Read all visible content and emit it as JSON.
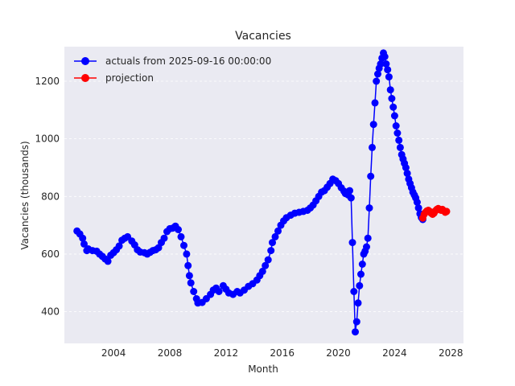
{
  "chart_data": {
    "type": "line",
    "title": "Vacancies",
    "xlabel": "Month",
    "ylabel": "Vacancies (thousands)",
    "xlim": [
      2000.5,
      2028.9
    ],
    "ylim": [
      290,
      1320
    ],
    "x_ticks": [
      2004,
      2008,
      2012,
      2016,
      2020,
      2024,
      2028
    ],
    "y_ticks": [
      400,
      600,
      800,
      1000,
      1200
    ],
    "grid": true,
    "legend": "top-left",
    "background_color": "#eaeaf2",
    "series": [
      {
        "name": "actuals from 2025-09-16 00:00:00",
        "color": "#0000ff",
        "marker": "circle",
        "points": [
          [
            2001.4,
            680
          ],
          [
            2001.6,
            670
          ],
          [
            2001.8,
            655
          ],
          [
            2001.9,
            635
          ],
          [
            2002.1,
            612
          ],
          [
            2002.2,
            618
          ],
          [
            2002.5,
            612
          ],
          [
            2002.8,
            610
          ],
          [
            2003.0,
            600
          ],
          [
            2003.2,
            592
          ],
          [
            2003.4,
            583
          ],
          [
            2003.6,
            575
          ],
          [
            2003.8,
            596
          ],
          [
            2004.0,
            605
          ],
          [
            2004.2,
            615
          ],
          [
            2004.4,
            628
          ],
          [
            2004.6,
            648
          ],
          [
            2004.8,
            655
          ],
          [
            2005.0,
            660
          ],
          [
            2005.3,
            645
          ],
          [
            2005.5,
            632
          ],
          [
            2005.7,
            615
          ],
          [
            2005.9,
            607
          ],
          [
            2006.2,
            605
          ],
          [
            2006.4,
            600
          ],
          [
            2006.6,
            606
          ],
          [
            2006.8,
            612
          ],
          [
            2007.0,
            615
          ],
          [
            2007.2,
            622
          ],
          [
            2007.4,
            640
          ],
          [
            2007.6,
            655
          ],
          [
            2007.8,
            678
          ],
          [
            2008.0,
            688
          ],
          [
            2008.2,
            690
          ],
          [
            2008.4,
            697
          ],
          [
            2008.6,
            685
          ],
          [
            2008.8,
            660
          ],
          [
            2009.0,
            630
          ],
          [
            2009.2,
            600
          ],
          [
            2009.3,
            560
          ],
          [
            2009.4,
            525
          ],
          [
            2009.5,
            500
          ],
          [
            2009.7,
            470
          ],
          [
            2009.9,
            445
          ],
          [
            2010.0,
            430
          ],
          [
            2010.3,
            432
          ],
          [
            2010.6,
            445
          ],
          [
            2010.9,
            460
          ],
          [
            2011.1,
            475
          ],
          [
            2011.3,
            482
          ],
          [
            2011.5,
            470
          ],
          [
            2011.8,
            490
          ],
          [
            2012.0,
            478
          ],
          [
            2012.2,
            465
          ],
          [
            2012.5,
            460
          ],
          [
            2012.8,
            470
          ],
          [
            2013.0,
            465
          ],
          [
            2013.3,
            475
          ],
          [
            2013.6,
            488
          ],
          [
            2013.9,
            497
          ],
          [
            2014.2,
            510
          ],
          [
            2014.4,
            525
          ],
          [
            2014.6,
            540
          ],
          [
            2014.8,
            560
          ],
          [
            2015.0,
            580
          ],
          [
            2015.2,
            612
          ],
          [
            2015.3,
            640
          ],
          [
            2015.5,
            660
          ],
          [
            2015.7,
            680
          ],
          [
            2015.9,
            700
          ],
          [
            2016.1,
            715
          ],
          [
            2016.3,
            726
          ],
          [
            2016.6,
            735
          ],
          [
            2016.9,
            742
          ],
          [
            2017.2,
            745
          ],
          [
            2017.5,
            748
          ],
          [
            2017.8,
            752
          ],
          [
            2018.0,
            760
          ],
          [
            2018.2,
            770
          ],
          [
            2018.4,
            785
          ],
          [
            2018.6,
            800
          ],
          [
            2018.8,
            815
          ],
          [
            2019.0,
            820
          ],
          [
            2019.2,
            832
          ],
          [
            2019.4,
            845
          ],
          [
            2019.6,
            860
          ],
          [
            2019.8,
            855
          ],
          [
            2020.0,
            845
          ],
          [
            2020.2,
            830
          ],
          [
            2020.4,
            818
          ],
          [
            2020.5,
            810
          ],
          [
            2020.7,
            805
          ],
          [
            2020.8,
            820
          ],
          [
            2020.9,
            795
          ],
          [
            2021.0,
            640
          ],
          [
            2021.1,
            470
          ],
          [
            2021.2,
            330
          ],
          [
            2021.3,
            365
          ],
          [
            2021.4,
            430
          ],
          [
            2021.5,
            490
          ],
          [
            2021.6,
            530
          ],
          [
            2021.7,
            565
          ],
          [
            2021.8,
            600
          ],
          [
            2021.9,
            610
          ],
          [
            2022.0,
            625
          ],
          [
            2022.1,
            655
          ],
          [
            2022.2,
            760
          ],
          [
            2022.3,
            870
          ],
          [
            2022.4,
            970
          ],
          [
            2022.5,
            1050
          ],
          [
            2022.6,
            1125
          ],
          [
            2022.7,
            1200
          ],
          [
            2022.8,
            1225
          ],
          [
            2022.9,
            1245
          ],
          [
            2023.0,
            1260
          ],
          [
            2023.1,
            1280
          ],
          [
            2023.2,
            1298
          ],
          [
            2023.3,
            1285
          ],
          [
            2023.4,
            1260
          ],
          [
            2023.5,
            1240
          ],
          [
            2023.6,
            1215
          ],
          [
            2023.7,
            1170
          ],
          [
            2023.8,
            1140
          ],
          [
            2023.9,
            1110
          ],
          [
            2024.0,
            1080
          ],
          [
            2024.1,
            1045
          ],
          [
            2024.2,
            1020
          ],
          [
            2024.3,
            995
          ],
          [
            2024.4,
            970
          ],
          [
            2024.5,
            945
          ],
          [
            2024.6,
            930
          ],
          [
            2024.7,
            915
          ],
          [
            2024.8,
            900
          ],
          [
            2024.9,
            880
          ],
          [
            2025.0,
            860
          ],
          [
            2025.1,
            845
          ],
          [
            2025.2,
            830
          ],
          [
            2025.3,
            815
          ],
          [
            2025.4,
            805
          ],
          [
            2025.5,
            795
          ],
          [
            2025.6,
            780
          ],
          [
            2025.7,
            760
          ],
          [
            2025.8,
            740
          ],
          [
            2025.9,
            727
          ],
          [
            2026.0,
            720
          ]
        ]
      },
      {
        "name": "projection",
        "color": "#ff0000",
        "marker": "circle",
        "points": [
          [
            2026.0,
            725
          ],
          [
            2026.1,
            738
          ],
          [
            2026.2,
            745
          ],
          [
            2026.3,
            750
          ],
          [
            2026.4,
            752
          ],
          [
            2026.5,
            748
          ],
          [
            2026.6,
            742
          ],
          [
            2026.7,
            738
          ],
          [
            2026.8,
            742
          ],
          [
            2026.9,
            750
          ],
          [
            2027.0,
            755
          ],
          [
            2027.1,
            758
          ],
          [
            2027.2,
            755
          ],
          [
            2027.3,
            752
          ],
          [
            2027.4,
            755
          ],
          [
            2027.5,
            750
          ],
          [
            2027.6,
            745
          ],
          [
            2027.7,
            748
          ]
        ]
      }
    ]
  }
}
